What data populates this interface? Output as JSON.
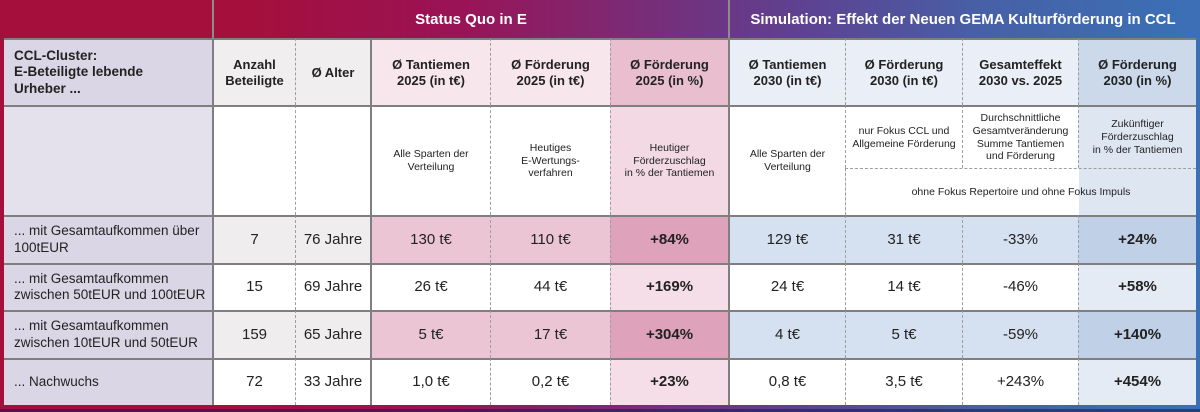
{
  "banner": {
    "status_quo": "Status Quo in E",
    "simulation": "Simulation: Effekt der Neuen GEMA Kulturförderung in CCL"
  },
  "corner": {
    "title": "CCL-Cluster:\nE-Beteiligte lebende\nUrheber ..."
  },
  "headers": {
    "anzahl": "Anzahl\nBeteiligte",
    "alter": "Ø Alter",
    "tantiemen_2025": "Ø Tantiemen\n2025 (in t€)",
    "foerderung_2025": "Ø Förderung\n2025 (in t€)",
    "foerderung_pct_2025": "Ø Förderung\n2025 (in %)",
    "tantiemen_2030": "Ø Tantiemen\n2030 (in t€)",
    "foerderung_2030": "Ø Förderung\n2030 (in t€)",
    "gesamteffekt": "Gesamteffekt\n2030 vs. 2025",
    "foerderung_pct_2030": "Ø Förderung\n2030 (in %)"
  },
  "subheaders": {
    "tantiemen_2025": "Alle Sparten der\nVerteilung",
    "foerderung_2025": "Heutiges\nE-Wertungs-\nverfahren",
    "foerderung_pct_2025": "Heutiger\nFörderzuschlag\nin % der Tantiemen",
    "tantiemen_2030": "Alle Sparten der\nVerteilung",
    "foerderung_2030": "nur Fokus CCL und\nAllgemeine Förderung",
    "gesamteffekt": "Durchschnittliche\nGesamtveränderung\nSumme Tantiemen\nund Förderung",
    "foerderung_pct_2030": "Zukünftiger\nFörderzuschlag\nin % der Tantiemen",
    "note": "ohne Fokus Repertoire und ohne Fokus Impuls"
  },
  "rows": [
    {
      "label": "... mit Gesamtaufkommen über\n100tEUR",
      "anzahl": "7",
      "alter": "76 Jahre",
      "tantiemen_2025": "130 t€",
      "foerderung_2025": "110 t€",
      "foerderung_pct_2025": "+84%",
      "tantiemen_2030": "129 t€",
      "foerderung_2030": "31 t€",
      "gesamteffekt": "-33%",
      "foerderung_pct_2030": "+24%"
    },
    {
      "label": "... mit Gesamtaufkommen\nzwischen 50tEUR und 100tEUR",
      "anzahl": "15",
      "alter": "69 Jahre",
      "tantiemen_2025": "26 t€",
      "foerderung_2025": "44 t€",
      "foerderung_pct_2025": "+169%",
      "tantiemen_2030": "24 t€",
      "foerderung_2030": "14 t€",
      "gesamteffekt": "-46%",
      "foerderung_pct_2030": "+58%"
    },
    {
      "label": "... mit Gesamtaufkommen\nzwischen 10tEUR und 50tEUR",
      "anzahl": "159",
      "alter": "65 Jahre",
      "tantiemen_2025": "5 t€",
      "foerderung_2025": "17 t€",
      "foerderung_pct_2025": "+304%",
      "tantiemen_2030": "4 t€",
      "foerderung_2030": "5 t€",
      "gesamteffekt": "-59%",
      "foerderung_pct_2030": "+140%"
    },
    {
      "label": "... Nachwuchs",
      "anzahl": "72",
      "alter": "33 Jahre",
      "tantiemen_2025": "1,0 t€",
      "foerderung_2025": "0,2 t€",
      "foerderung_pct_2025": "+23%",
      "tantiemen_2030": "0,8 t€",
      "foerderung_2030": "3,5 t€",
      "gesamteffekt": "+243%",
      "foerderung_pct_2030": "+454%"
    }
  ],
  "colors": {
    "crimson": "#a50f3c",
    "purple": "#7c2a74",
    "blue": "#3b70b6",
    "lavender_label": "#dbd6e5",
    "pink_cell_shaded": "#ecc5d5",
    "pink_pct_shaded": "#dea2bb",
    "pink_pct_light": "#f5dee7",
    "blue_cell_shaded": "#d5e0f0",
    "blue_pct_shaded": "#bfd0e7",
    "blue_pct_light": "#e5ebf5"
  },
  "chart_data": {
    "type": "table",
    "title": "CCL-Cluster: E-Beteiligte lebende Urheber ...",
    "column_groups": [
      "Status Quo in E",
      "Simulation: Effekt der Neuen GEMA Kulturförderung in CCL"
    ],
    "columns": [
      "CCL-Cluster: E-Beteiligte lebende Urheber ...",
      "Anzahl Beteiligte",
      "Ø Alter",
      "Ø Tantiemen 2025 (in t€)",
      "Ø Förderung 2025 (in t€)",
      "Ø Förderung 2025 (in %)",
      "Ø Tantiemen 2030 (in t€)",
      "Ø Förderung 2030 (in t€)",
      "Gesamteffekt 2030 vs. 2025",
      "Ø Förderung 2030 (in %)"
    ],
    "column_notes": [
      "",
      "",
      "",
      "Alle Sparten der Verteilung",
      "Heutiges E-Wertungs-verfahren",
      "Heutiger Förderzuschlag in % der Tantiemen",
      "Alle Sparten der Verteilung",
      "nur Fokus CCL und Allgemeine Förderung",
      "Durchschnittliche Gesamtveränderung Summe Tantiemen und Förderung",
      "Zukünftiger Förderzuschlag in % der Tantiemen"
    ],
    "footnote": "ohne Fokus Repertoire und ohne Fokus Impuls",
    "rows": [
      [
        "... mit Gesamtaufkommen über 100tEUR",
        7,
        "76 Jahre",
        "130 t€",
        "110 t€",
        "+84%",
        "129 t€",
        "31 t€",
        "-33%",
        "+24%"
      ],
      [
        "... mit Gesamtaufkommen zwischen 50tEUR und 100tEUR",
        15,
        "69 Jahre",
        "26 t€",
        "44 t€",
        "+169%",
        "24 t€",
        "14 t€",
        "-46%",
        "+58%"
      ],
      [
        "... mit Gesamtaufkommen zwischen 10tEUR und 50tEUR",
        159,
        "65 Jahre",
        "5 t€",
        "17 t€",
        "+304%",
        "4 t€",
        "5 t€",
        "-59%",
        "+140%"
      ],
      [
        "... Nachwuchs",
        72,
        "33 Jahre",
        "1,0 t€",
        "0,2 t€",
        "+23%",
        "0,8 t€",
        "3,5 t€",
        "+243%",
        "+454%"
      ]
    ]
  }
}
